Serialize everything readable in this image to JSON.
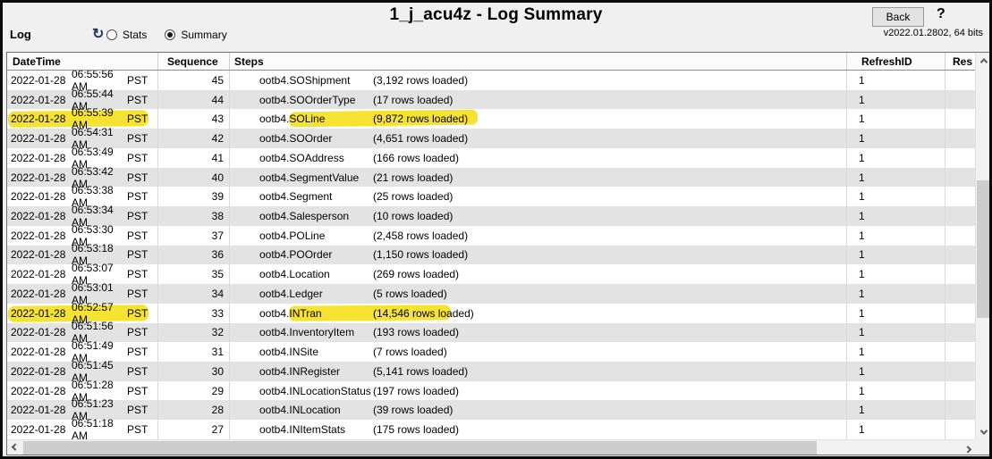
{
  "window": {
    "title": "1_j_acu4z - Log Summary",
    "back_label": "Back",
    "help_label": "?",
    "version": "v2022.01.2802, 64 bits"
  },
  "toolbar": {
    "log_label": "Log",
    "refresh_icon_glyph": "↻",
    "radios": [
      {
        "label": "Stats",
        "selected": false
      },
      {
        "label": "Summary",
        "selected": true
      }
    ]
  },
  "table": {
    "columns": [
      "DateTime",
      "Sequence",
      "Steps",
      "RefreshID",
      "Res"
    ],
    "rows": [
      {
        "date": "2022-01-28",
        "time": "06:55:56 AM",
        "tz": "PST",
        "sequence": "45",
        "step": "ootb4.SOShipment",
        "rows_loaded": "(3,192 rows loaded)",
        "refresh_id": "1",
        "result": "",
        "highlighted": false
      },
      {
        "date": "2022-01-28",
        "time": "06:55:44 AM",
        "tz": "PST",
        "sequence": "44",
        "step": "ootb4.SOOrderType",
        "rows_loaded": "(17 rows loaded)",
        "refresh_id": "1",
        "result": "",
        "highlighted": false
      },
      {
        "date": "2022-01-28",
        "time": "06:55:39 AM",
        "tz": "PST",
        "sequence": "43",
        "step": "ootb4.SOLine",
        "rows_loaded": "(9,872 rows loaded)",
        "refresh_id": "1",
        "result": "",
        "highlighted": true
      },
      {
        "date": "2022-01-28",
        "time": "06:54:31 AM",
        "tz": "PST",
        "sequence": "42",
        "step": "ootb4.SOOrder",
        "rows_loaded": "(4,651 rows loaded)",
        "refresh_id": "1",
        "result": "",
        "highlighted": false
      },
      {
        "date": "2022-01-28",
        "time": "06:53:49 AM",
        "tz": "PST",
        "sequence": "41",
        "step": "ootb4.SOAddress",
        "rows_loaded": "(166 rows loaded)",
        "refresh_id": "1",
        "result": "",
        "highlighted": false
      },
      {
        "date": "2022-01-28",
        "time": "06:53:42 AM",
        "tz": "PST",
        "sequence": "40",
        "step": "ootb4.SegmentValue",
        "rows_loaded": "(21 rows loaded)",
        "refresh_id": "1",
        "result": "",
        "highlighted": false
      },
      {
        "date": "2022-01-28",
        "time": "06:53:38 AM",
        "tz": "PST",
        "sequence": "39",
        "step": "ootb4.Segment",
        "rows_loaded": "(25 rows loaded)",
        "refresh_id": "1",
        "result": "",
        "highlighted": false
      },
      {
        "date": "2022-01-28",
        "time": "06:53:34 AM",
        "tz": "PST",
        "sequence": "38",
        "step": "ootb4.Salesperson",
        "rows_loaded": "(10 rows loaded)",
        "refresh_id": "1",
        "result": "",
        "highlighted": false
      },
      {
        "date": "2022-01-28",
        "time": "06:53:30 AM",
        "tz": "PST",
        "sequence": "37",
        "step": "ootb4.POLine",
        "rows_loaded": "(2,458 rows loaded)",
        "refresh_id": "1",
        "result": "",
        "highlighted": false
      },
      {
        "date": "2022-01-28",
        "time": "06:53:18 AM",
        "tz": "PST",
        "sequence": "36",
        "step": "ootb4.POOrder",
        "rows_loaded": "(1,150 rows loaded)",
        "refresh_id": "1",
        "result": "",
        "highlighted": false
      },
      {
        "date": "2022-01-28",
        "time": "06:53:07 AM",
        "tz": "PST",
        "sequence": "35",
        "step": "ootb4.Location",
        "rows_loaded": "(269 rows loaded)",
        "refresh_id": "1",
        "result": "",
        "highlighted": false
      },
      {
        "date": "2022-01-28",
        "time": "06:53:01 AM",
        "tz": "PST",
        "sequence": "34",
        "step": "ootb4.Ledger",
        "rows_loaded": "(5 rows loaded)",
        "refresh_id": "1",
        "result": "",
        "highlighted": false
      },
      {
        "date": "2022-01-28",
        "time": "06:52:57 AM",
        "tz": "PST",
        "sequence": "33",
        "step": "ootb4.INTran",
        "rows_loaded": "(14,546 rows loaded)",
        "refresh_id": "1",
        "result": "",
        "highlighted": true
      },
      {
        "date": "2022-01-28",
        "time": "06:51:56 AM",
        "tz": "PST",
        "sequence": "32",
        "step": "ootb4.InventoryItem",
        "rows_loaded": "(193 rows loaded)",
        "refresh_id": "1",
        "result": "",
        "highlighted": false
      },
      {
        "date": "2022-01-28",
        "time": "06:51:49 AM",
        "tz": "PST",
        "sequence": "31",
        "step": "ootb4.INSite",
        "rows_loaded": "(7 rows loaded)",
        "refresh_id": "1",
        "result": "",
        "highlighted": false
      },
      {
        "date": "2022-01-28",
        "time": "06:51:45 AM",
        "tz": "PST",
        "sequence": "30",
        "step": "ootb4.INRegister",
        "rows_loaded": "(5,141 rows loaded)",
        "refresh_id": "1",
        "result": "",
        "highlighted": false
      },
      {
        "date": "2022-01-28",
        "time": "06:51:28 AM",
        "tz": "PST",
        "sequence": "29",
        "step": "ootb4.INLocationStatus",
        "rows_loaded": "(197 rows loaded)",
        "refresh_id": "1",
        "result": "",
        "highlighted": false
      },
      {
        "date": "2022-01-28",
        "time": "06:51:23 AM",
        "tz": "PST",
        "sequence": "28",
        "step": "ootb4.INLocation",
        "rows_loaded": "(39 rows loaded)",
        "refresh_id": "1",
        "result": "",
        "highlighted": false
      },
      {
        "date": "2022-01-28",
        "time": "06:51:18 AM",
        "tz": "PST",
        "sequence": "27",
        "step": "ootb4.INItemStats",
        "rows_loaded": "(175 rows loaded)",
        "refresh_id": "1",
        "result": "",
        "highlighted": false
      }
    ]
  },
  "colors": {
    "highlight_marker": "#f5e231",
    "row_stripe": "#e3e3e3",
    "chrome_background": "#f0f0f0",
    "refresh_icon": "#1c3a5e"
  }
}
